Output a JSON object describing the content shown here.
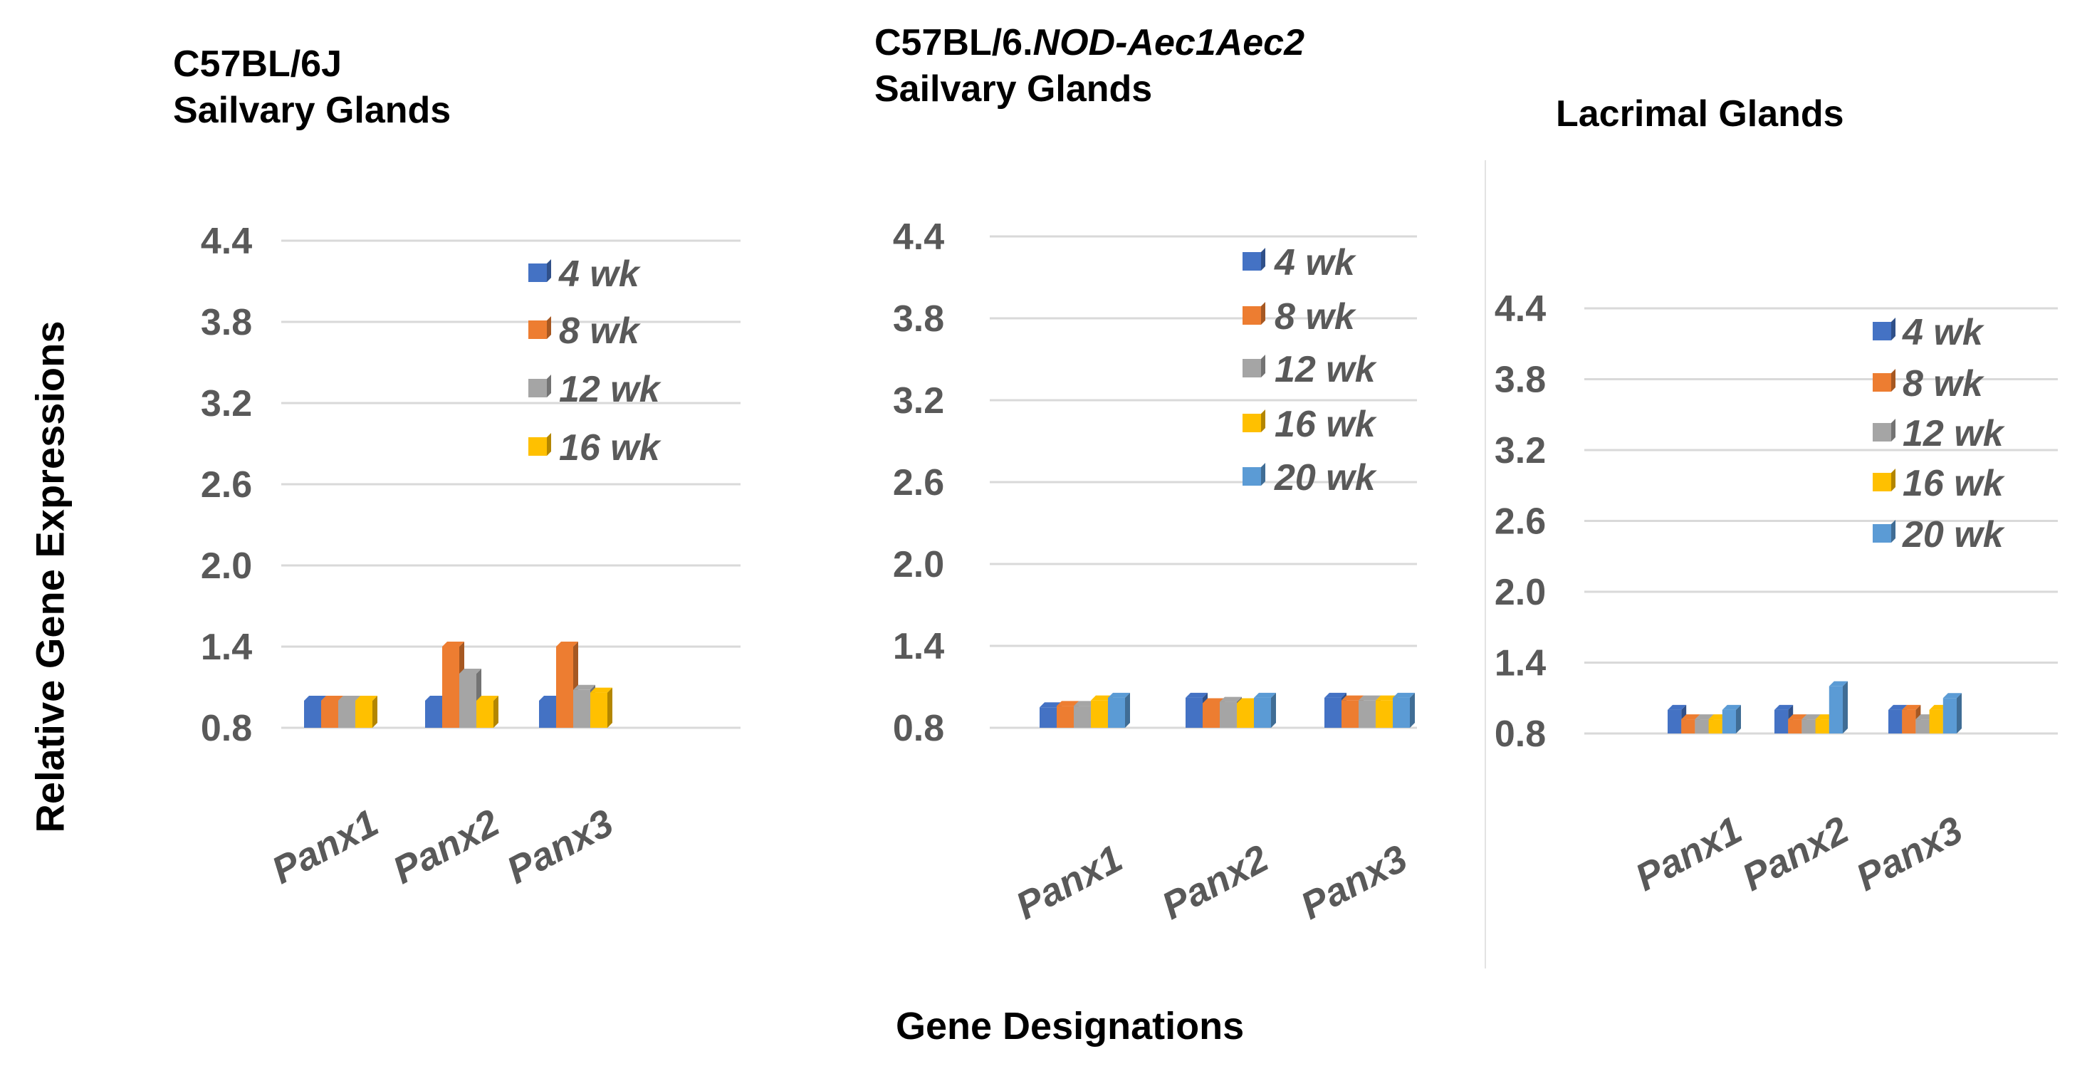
{
  "figure": {
    "y_axis_label": "Relative Gene Expressions",
    "x_axis_label": "Gene Designations"
  },
  "panels": [
    {
      "title_lines": [
        [
          "C57BL/6J"
        ],
        [
          "Sailvary Glands"
        ]
      ]
    },
    {
      "title_lines": [
        [
          "C57BL/6.",
          "NOD-Aec1Aec2"
        ],
        [
          "Sailvary Glands"
        ]
      ]
    },
    {
      "title_lines": [
        [
          "Lacrimal Glands"
        ]
      ]
    }
  ],
  "colors": {
    "4 wk": "#4472C4",
    "8 wk": "#ED7D31",
    "12 wk": "#A5A5A5",
    "16 wk": "#FFC000",
    "20 wk": "#5B9BD5"
  },
  "chart_data": [
    {
      "type": "bar",
      "title": "C57BL/6J Sailvary Glands",
      "categories": [
        "Panx1",
        "Panx2",
        "Panx3"
      ],
      "yticks": [
        "4.4",
        "3.8",
        "3.2",
        "2.6",
        "2.0",
        "1.4",
        "0.8"
      ],
      "ylim": [
        0.8,
        4.4
      ],
      "legend": [
        "4 wk",
        "8 wk",
        "12 wk",
        "16 wk"
      ],
      "series": [
        {
          "name": "4 wk",
          "values": [
            1.0,
            1.0,
            1.0
          ]
        },
        {
          "name": "8 wk",
          "values": [
            1.0,
            1.4,
            1.4
          ]
        },
        {
          "name": "12 wk",
          "values": [
            1.0,
            1.2,
            1.08
          ]
        },
        {
          "name": "16 wk",
          "values": [
            1.0,
            1.0,
            1.06
          ]
        }
      ],
      "xlabel": "Gene Designations",
      "ylabel": "Relative Gene Expressions"
    },
    {
      "type": "bar",
      "title": "C57BL/6.NOD-Aec1Aec2 Sailvary Glands",
      "categories": [
        "Panx1",
        "Panx2",
        "Panx3"
      ],
      "yticks": [
        "4.4",
        "3.8",
        "3.2",
        "2.6",
        "2.0",
        "1.4",
        "0.8"
      ],
      "ylim": [
        0.8,
        4.4
      ],
      "legend": [
        "4 wk",
        "8 wk",
        "12 wk",
        "16 wk",
        "20 wk"
      ],
      "series": [
        {
          "name": "4 wk",
          "values": [
            0.95,
            1.02,
            1.02
          ]
        },
        {
          "name": "8 wk",
          "values": [
            0.96,
            0.98,
            1.0
          ]
        },
        {
          "name": "12 wk",
          "values": [
            0.96,
            0.99,
            1.0
          ]
        },
        {
          "name": "16 wk",
          "values": [
            1.0,
            0.98,
            1.0
          ]
        },
        {
          "name": "20 wk",
          "values": [
            1.02,
            1.02,
            1.02
          ]
        }
      ],
      "xlabel": "Gene Designations",
      "ylabel": "Relative Gene Expressions"
    },
    {
      "type": "bar",
      "title": "Lacrimal Glands",
      "categories": [
        "Panx1",
        "Panx2",
        "Panx3"
      ],
      "yticks": [
        "4.4",
        "3.8",
        "3.2",
        "2.6",
        "2.0",
        "1.4",
        "0.8"
      ],
      "ylim": [
        0.8,
        4.4
      ],
      "legend": [
        "4 wk",
        "8 wk",
        "12 wk",
        "16 wk",
        "20 wk"
      ],
      "series": [
        {
          "name": "4 wk",
          "values": [
            1.0,
            1.0,
            1.0
          ]
        },
        {
          "name": "8 wk",
          "values": [
            0.92,
            0.92,
            1.0
          ]
        },
        {
          "name": "12 wk",
          "values": [
            0.92,
            0.92,
            0.92
          ]
        },
        {
          "name": "16 wk",
          "values": [
            0.92,
            0.92,
            1.0
          ]
        },
        {
          "name": "20 wk",
          "values": [
            1.0,
            1.2,
            1.1
          ]
        }
      ],
      "xlabel": "Gene Designations",
      "ylabel": "Relative Gene Expressions"
    }
  ]
}
